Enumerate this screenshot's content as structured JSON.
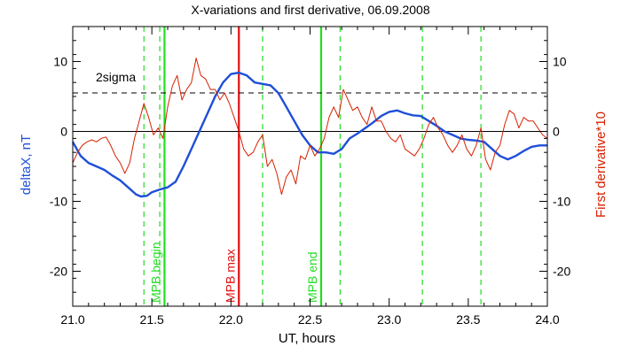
{
  "chart_data": {
    "type": "line",
    "title": "X-variations and first derivative, 06.09.2008",
    "xlabel": "UT, hours",
    "ylabel_left": "deltaX, nT",
    "ylabel_right": "First derivative*10",
    "xlim": [
      21.0,
      24.0
    ],
    "ylim": [
      -25,
      15
    ],
    "xticks": [
      21.0,
      21.5,
      22.0,
      22.5,
      23.0,
      23.5,
      24.0
    ],
    "xtick_labels": [
      "21.0",
      "21.5",
      "22.0",
      "22.5",
      "23.0",
      "23.5",
      "24.0"
    ],
    "yticks": [
      -20,
      -10,
      0,
      10
    ],
    "ytick_labels": [
      "-20",
      "-10",
      "0",
      "10"
    ],
    "colors": {
      "deltaX": "#1f4fd8",
      "derivative": "#d62000",
      "green": "#22dd22",
      "max_line": "#e01010",
      "axes": "#000000"
    },
    "threshold": {
      "label": "2sigma",
      "value": 5.5
    },
    "zero_line": 0,
    "vertical_lines": [
      {
        "x": 21.58,
        "label": "MPB begin",
        "style": "solid",
        "color": "green"
      },
      {
        "x": 22.05,
        "label": "MPB max",
        "style": "solid",
        "color": "red"
      },
      {
        "x": 22.57,
        "label": "MPB end",
        "style": "solid",
        "color": "green"
      },
      {
        "x": 21.45,
        "style": "dashed",
        "color": "green"
      },
      {
        "x": 21.55,
        "style": "dashed",
        "color": "green"
      },
      {
        "x": 22.2,
        "style": "dashed",
        "color": "green"
      },
      {
        "x": 22.69,
        "style": "dashed",
        "color": "green"
      },
      {
        "x": 23.21,
        "style": "dashed",
        "color": "green"
      },
      {
        "x": 23.58,
        "style": "dashed",
        "color": "green"
      }
    ],
    "series": [
      {
        "key": "deltaX",
        "x": [
          21.0,
          21.05,
          21.1,
          21.15,
          21.2,
          21.25,
          21.3,
          21.35,
          21.4,
          21.43,
          21.47,
          21.5,
          21.55,
          21.6,
          21.65,
          21.7,
          21.75,
          21.8,
          21.85,
          21.9,
          21.95,
          22.0,
          22.05,
          22.1,
          22.15,
          22.2,
          22.25,
          22.3,
          22.35,
          22.4,
          22.45,
          22.5,
          22.55,
          22.6,
          22.65,
          22.7,
          22.75,
          22.8,
          22.85,
          22.9,
          22.95,
          23.0,
          23.05,
          23.1,
          23.15,
          23.2,
          23.25,
          23.3,
          23.35,
          23.4,
          23.45,
          23.5,
          23.55,
          23.6,
          23.65,
          23.7,
          23.75,
          23.8,
          23.85,
          23.9,
          23.95,
          24.0
        ],
        "values": [
          -1.5,
          -3.5,
          -4.5,
          -5.0,
          -5.5,
          -6.3,
          -7.0,
          -8.0,
          -9.0,
          -9.3,
          -9.2,
          -8.7,
          -8.3,
          -8.0,
          -7.2,
          -5.0,
          -2.5,
          0.0,
          2.5,
          5.0,
          7.0,
          8.2,
          8.4,
          8.0,
          7.0,
          6.8,
          6.6,
          5.5,
          3.5,
          1.5,
          -0.5,
          -2.0,
          -3.0,
          -3.0,
          -3.2,
          -2.5,
          -1.0,
          -0.3,
          0.5,
          1.3,
          2.2,
          2.8,
          3.0,
          2.6,
          2.3,
          2.2,
          1.5,
          0.8,
          0.0,
          -0.5,
          -1.0,
          -1.2,
          -1.3,
          -1.5,
          -2.5,
          -3.5,
          -4.0,
          -3.5,
          -2.8,
          -2.2,
          -2.0,
          -2.0
        ]
      },
      {
        "key": "derivative",
        "x": [
          21.0,
          21.03,
          21.06,
          21.09,
          21.12,
          21.15,
          21.18,
          21.21,
          21.24,
          21.27,
          21.3,
          21.33,
          21.36,
          21.39,
          21.42,
          21.45,
          21.48,
          21.51,
          21.54,
          21.57,
          21.6,
          21.63,
          21.66,
          21.69,
          21.72,
          21.75,
          21.78,
          21.81,
          21.84,
          21.87,
          21.9,
          21.93,
          21.96,
          21.99,
          22.02,
          22.05,
          22.08,
          22.11,
          22.14,
          22.17,
          22.2,
          22.23,
          22.26,
          22.29,
          22.32,
          22.35,
          22.38,
          22.41,
          22.44,
          22.47,
          22.5,
          22.53,
          22.56,
          22.59,
          22.62,
          22.65,
          22.68,
          22.71,
          22.74,
          22.77,
          22.8,
          22.83,
          22.86,
          22.89,
          22.92,
          22.95,
          22.98,
          23.01,
          23.04,
          23.07,
          23.1,
          23.13,
          23.16,
          23.19,
          23.22,
          23.25,
          23.28,
          23.31,
          23.34,
          23.37,
          23.4,
          23.43,
          23.46,
          23.49,
          23.52,
          23.55,
          23.58,
          23.61,
          23.64,
          23.67,
          23.7,
          23.73,
          23.76,
          23.79,
          23.82,
          23.85,
          23.88,
          23.91,
          23.94,
          23.97,
          24.0
        ],
        "values": [
          -4.5,
          -3.0,
          -2.0,
          -1.5,
          -1.2,
          -1.5,
          -1.0,
          -0.8,
          -2.0,
          -3.5,
          -4.5,
          -6.0,
          -4.5,
          -1.0,
          1.5,
          4.0,
          2.0,
          -0.5,
          0.5,
          -1.0,
          3.5,
          6.5,
          8.0,
          4.5,
          6.0,
          7.0,
          10.5,
          8.0,
          7.5,
          6.0,
          6.0,
          4.5,
          5.5,
          4.0,
          2.0,
          0.0,
          -2.5,
          -3.5,
          -3.0,
          -1.5,
          -0.5,
          -5.0,
          -4.0,
          -6.0,
          -9.0,
          -6.5,
          -5.5,
          -7.5,
          -3.5,
          -4.0,
          -2.0,
          -3.5,
          -2.5,
          -1.0,
          2.0,
          3.5,
          2.0,
          6.0,
          4.5,
          3.0,
          3.5,
          2.0,
          1.0,
          3.5,
          1.5,
          1.5,
          0.0,
          -1.0,
          -1.5,
          -0.5,
          -2.5,
          -3.0,
          -3.5,
          -2.5,
          -1.0,
          1.0,
          2.0,
          0.5,
          -0.5,
          -2.0,
          -3.0,
          -2.0,
          -0.5,
          -2.5,
          -3.5,
          -2.0,
          0.5,
          -4.0,
          -5.5,
          -3.0,
          -2.0,
          1.0,
          3.0,
          2.5,
          0.5,
          2.0,
          1.5,
          1.5,
          0.5,
          -0.5,
          -1.0
        ]
      }
    ]
  }
}
